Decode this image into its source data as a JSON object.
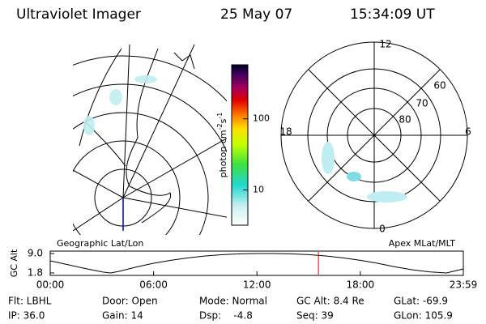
{
  "header": {
    "title": "Ultraviolet Imager",
    "date": "25 May 07",
    "time": "15:34:09 UT"
  },
  "colorbar": {
    "label": [
      "photon cm",
      "-2",
      "s",
      "-1"
    ],
    "lim": [
      3.2,
      575
    ],
    "log": true,
    "ticks": [
      10,
      100
    ]
  },
  "map": {
    "label": "Geographic Lat/Lon"
  },
  "polar": {
    "label": "Apex MLat/MLT",
    "hours": [
      "12",
      "18",
      "6",
      "0"
    ],
    "lats": [
      80,
      70,
      60
    ]
  },
  "altitude": {
    "ylabel": "GC Alt",
    "x": [
      0,
      1,
      2,
      3,
      3.5,
      4,
      5,
      6,
      7,
      8,
      9,
      10,
      11,
      12,
      13,
      14,
      15,
      16,
      17,
      18,
      19,
      20,
      21,
      22,
      23,
      23.98
    ],
    "values": [
      6.3,
      4.9,
      3.5,
      2.2,
      1.8,
      2.4,
      4.0,
      5.4,
      6.5,
      7.4,
      8.1,
      8.6,
      8.9,
      9.0,
      9.0,
      8.9,
      8.6,
      8.1,
      7.4,
      6.5,
      5.4,
      4.1,
      3.0,
      2.2,
      1.8,
      3.3
    ],
    "xlim": [
      0,
      23.98
    ],
    "ylim": [
      1.8,
      9.0
    ],
    "xticks": [
      {
        "value": 0,
        "label": "00:00"
      },
      {
        "value": 6,
        "label": "06:00"
      },
      {
        "value": 12,
        "label": "12:00"
      },
      {
        "value": 18,
        "label": "18:00"
      },
      {
        "value": 23.98,
        "label": "23:59"
      }
    ],
    "yticks": [
      {
        "value": 1.8,
        "label": "1.8"
      },
      {
        "value": 9,
        "label": "9.0"
      }
    ],
    "marker": 15.57
  },
  "info": [
    [
      "Flt: LBHL",
      "Door: Open",
      "Mode: Normal",
      "GC Alt: 8.4 Re",
      "GLat: -69.9"
    ],
    [
      "IP: 36.0",
      "Gain: 14",
      "Dsp:    -4.8",
      "Seq: 39",
      "GLon: 105.9"
    ]
  ]
}
